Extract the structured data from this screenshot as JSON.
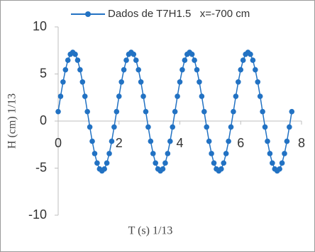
{
  "chart_data": {
    "type": "line",
    "legend_label": "Dados de T7H1.5   x=-700 cm",
    "x_label": "T (s) 1/13",
    "y_label": "H (cm) 1/13",
    "xlim": [
      0,
      8
    ],
    "xticks": [
      0,
      2,
      4,
      6,
      8
    ],
    "ylim": [
      -10,
      10
    ],
    "yticks": [
      -10,
      -5,
      0,
      5,
      10
    ],
    "grid": false,
    "legend": "top",
    "x": [
      0,
      0.08,
      0.16,
      0.24,
      0.32,
      0.4,
      0.48,
      0.56,
      0.64,
      0.72,
      0.8,
      0.88,
      0.96,
      1.04,
      1.12,
      1.2,
      1.28,
      1.36,
      1.44,
      1.52,
      1.6,
      1.68,
      1.76,
      1.84,
      1.92,
      2,
      2.08,
      2.16,
      2.24,
      2.32,
      2.4,
      2.48,
      2.56,
      2.64,
      2.72,
      2.8,
      2.88,
      2.96,
      3.04,
      3.12,
      3.2,
      3.28,
      3.36,
      3.44,
      3.52,
      3.6,
      3.68,
      3.76,
      3.84,
      3.92,
      4,
      4.08,
      4.16,
      4.24,
      4.32,
      4.4,
      4.48,
      4.56,
      4.64,
      4.72,
      4.8,
      4.88,
      4.96,
      5.04,
      5.12,
      5.2,
      5.28,
      5.36,
      5.44,
      5.52,
      5.6,
      5.68,
      5.76,
      5.84,
      5.92,
      6,
      6.08,
      6.16,
      6.24,
      6.32,
      6.4,
      6.48,
      6.56,
      6.64,
      6.72,
      6.8,
      6.88,
      6.96,
      7.04,
      7.12,
      7.2,
      7.28,
      7.36,
      7.44,
      7.52,
      7.6,
      7.68
    ],
    "series": [
      {
        "name": "Dados de T7H1.5   x=-700 cm",
        "color": "#2272c3",
        "values": [
          1,
          2.63,
          4.15,
          5.45,
          6.46,
          7.09,
          7.3,
          7.09,
          6.46,
          5.45,
          4.15,
          2.63,
          1,
          -0.63,
          -2.15,
          -3.45,
          -4.46,
          -5.09,
          -5.3,
          -5.09,
          -4.46,
          -3.45,
          -2.15,
          -0.63,
          1,
          2.63,
          4.15,
          5.45,
          6.46,
          7.09,
          7.3,
          7.09,
          6.46,
          5.45,
          4.15,
          2.63,
          1,
          -0.63,
          -2.15,
          -3.45,
          -4.46,
          -5.09,
          -5.3,
          -5.09,
          -4.46,
          -3.45,
          -2.15,
          -0.63,
          1,
          2.63,
          4.15,
          5.45,
          6.46,
          7.09,
          7.3,
          7.09,
          6.46,
          5.45,
          4.15,
          2.63,
          1,
          -0.63,
          -2.15,
          -3.45,
          -4.46,
          -5.09,
          -5.3,
          -5.09,
          -4.46,
          -3.45,
          -2.15,
          -0.63,
          1,
          2.63,
          4.15,
          5.45,
          6.46,
          7.09,
          7.3,
          7.09,
          6.46,
          5.45,
          4.15,
          2.63,
          1,
          -0.63,
          -2.15,
          -3.45,
          -4.46,
          -5.09,
          -5.3,
          -5.09,
          -4.46,
          -3.45,
          -2.15,
          -0.63,
          1
        ]
      }
    ]
  }
}
